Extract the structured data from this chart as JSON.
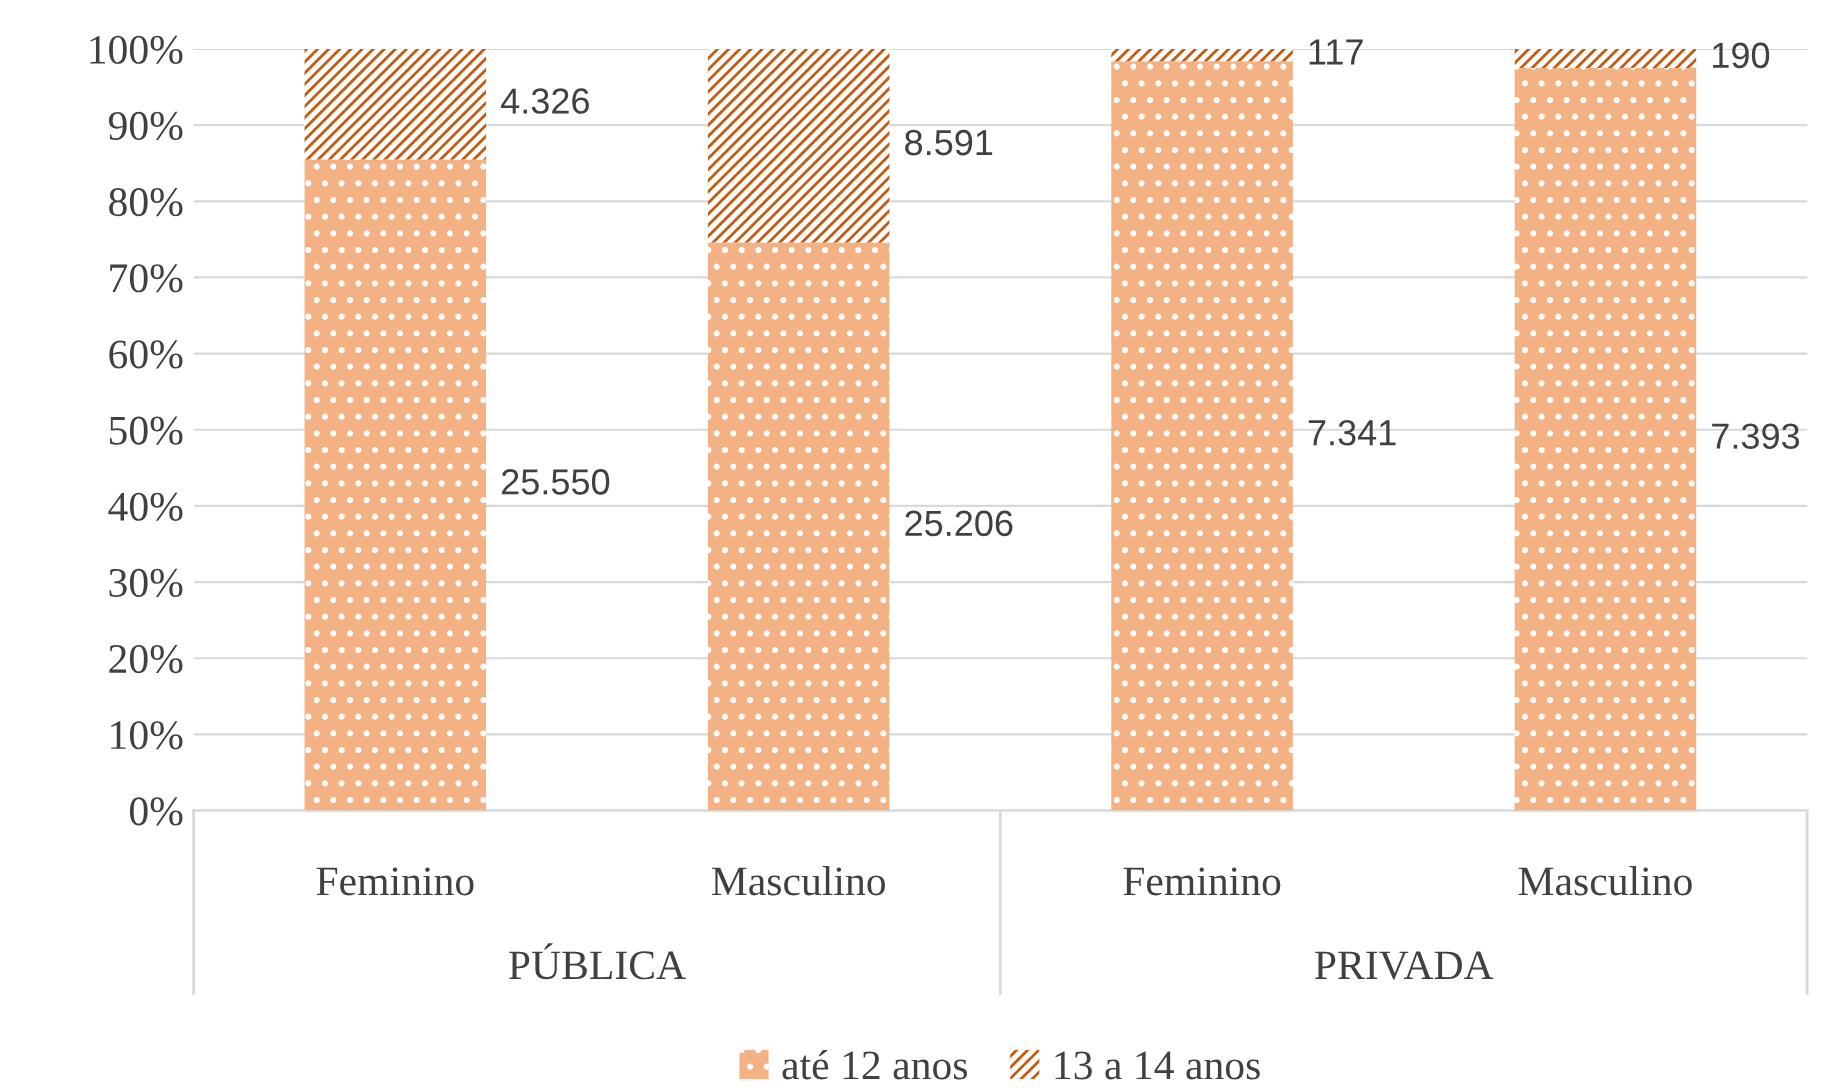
{
  "chart_data": {
    "type": "bar",
    "stacked": true,
    "categories": [
      "Feminino",
      "Masculino",
      "Feminino",
      "Masculino"
    ],
    "annotations": [
      "PÚBLICA",
      "PRIVADA",
      "25.550",
      "25.206",
      "7.341",
      "7.393",
      "4.326",
      "8.591",
      "117",
      "190"
    ],
    "series": [
      {
        "name": "até 12 anos",
        "color": "#f4b183",
        "values": [
          85.5,
          74.6,
          98.4,
          97.5
        ]
      },
      {
        "name": "13 a 14 anos",
        "color": "#c55a11",
        "values": [
          14.5,
          25.4,
          1.6,
          2.5
        ]
      }
    ],
    "ylim": [
      0,
      100
    ],
    "yticks": [
      {
        "value": 0,
        "label": "0%"
      },
      {
        "value": 10,
        "label": "10%"
      },
      {
        "value": 20,
        "label": "20%"
      },
      {
        "value": 30,
        "label": "30%"
      },
      {
        "value": 40,
        "label": "40%"
      },
      {
        "value": 50,
        "label": "50%"
      },
      {
        "value": 60,
        "label": "60%"
      },
      {
        "value": 70,
        "label": "70%"
      },
      {
        "value": 80,
        "label": "80%"
      },
      {
        "value": 90,
        "label": "90%"
      },
      {
        "value": 100,
        "label": "100%"
      }
    ],
    "grid": "y",
    "legend": "bottom"
  }
}
